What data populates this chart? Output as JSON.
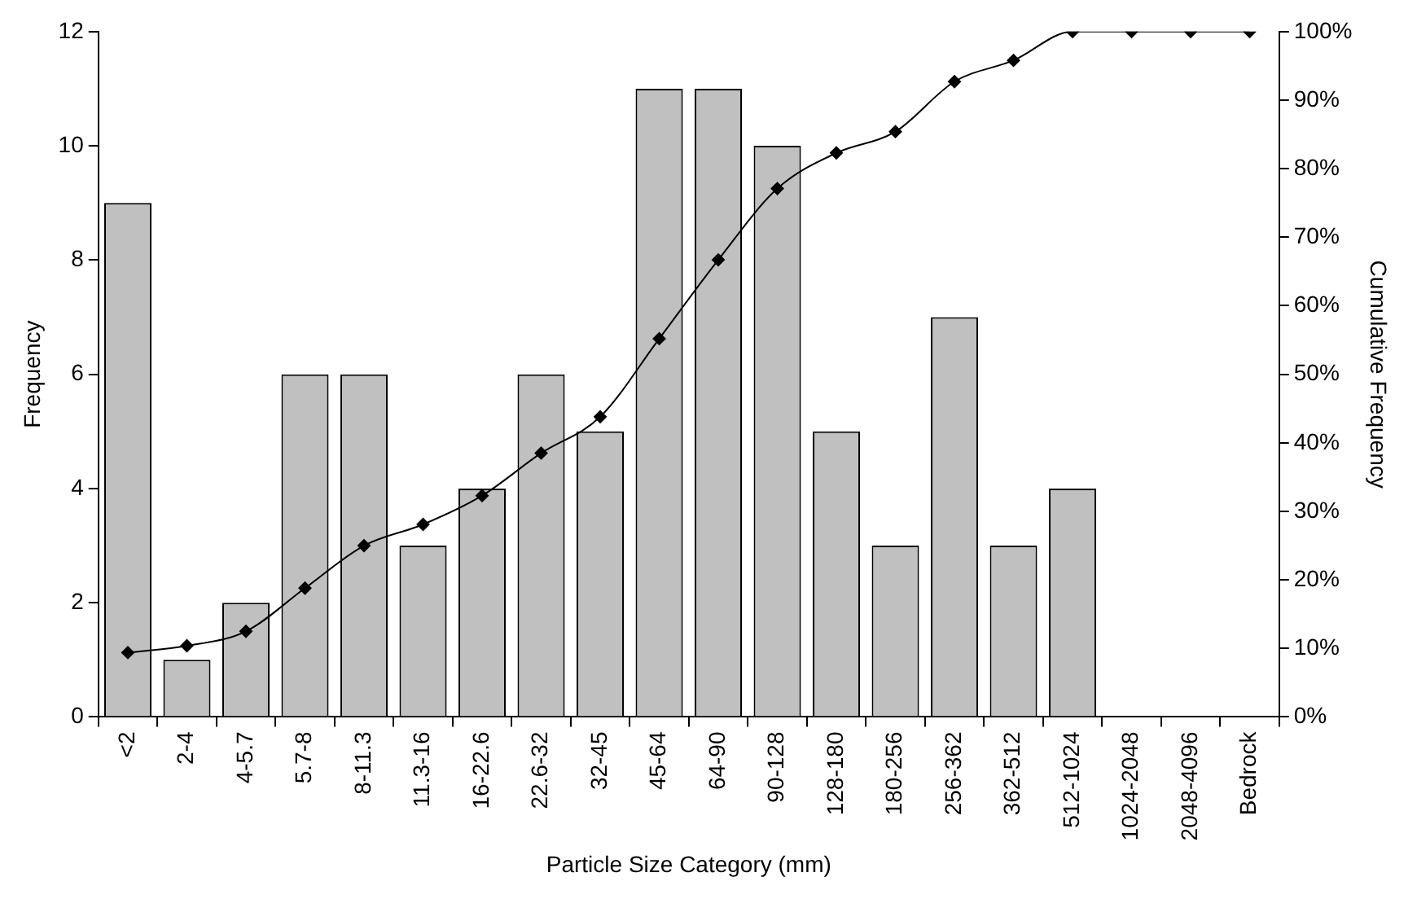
{
  "chart_data": {
    "type": "bar",
    "xlabel": "Particle Size Category (mm)",
    "ylabel": "Frequency",
    "y2label": "Cumulative Frequency",
    "categories": [
      "<2",
      "2-4",
      "4-5.7",
      "5.7-8",
      "8-11.3",
      "11.3-16",
      "16-22.6",
      "22.6-32",
      "32-45",
      "45-64",
      "64-90",
      "90-128",
      "128-180",
      "180-256",
      "256-362",
      "362-512",
      "512-1024",
      "1024-2048",
      "2048-4096",
      "Bedrock"
    ],
    "series": [
      {
        "type": "bar",
        "color": "#c0c0c0",
        "values": [
          9,
          1,
          2,
          6,
          6,
          3,
          4,
          6,
          5,
          11,
          11,
          10,
          5,
          3,
          7,
          3,
          4,
          0,
          0,
          0
        ]
      },
      {
        "type": "line",
        "axis": "y2",
        "color": "#000000",
        "marker": "diamond",
        "line_style": "solid",
        "values": [
          9.4,
          10.4,
          12.5,
          18.8,
          25,
          28.1,
          32.3,
          38.5,
          43.8,
          55.2,
          66.7,
          77.1,
          82.3,
          85.4,
          92.7,
          95.8,
          100,
          100,
          100,
          100
        ]
      }
    ],
    "ylim": [
      0,
      12
    ],
    "yticks": [
      0,
      2,
      4,
      6,
      8,
      10,
      12
    ],
    "y2lim": [
      0,
      100
    ],
    "y2ticks": [
      {
        "value": 0,
        "label": "0%"
      },
      {
        "value": 10,
        "label": "10%"
      },
      {
        "value": 20,
        "label": "20%"
      },
      {
        "value": 30,
        "label": "30%"
      },
      {
        "value": 40,
        "label": "40%"
      },
      {
        "value": 50,
        "label": "50%"
      },
      {
        "value": 60,
        "label": "60%"
      },
      {
        "value": 70,
        "label": "70%"
      },
      {
        "value": 80,
        "label": "80%"
      },
      {
        "value": 90,
        "label": "90%"
      },
      {
        "value": 100,
        "label": "100%"
      }
    ],
    "grid": false,
    "legend": false
  }
}
